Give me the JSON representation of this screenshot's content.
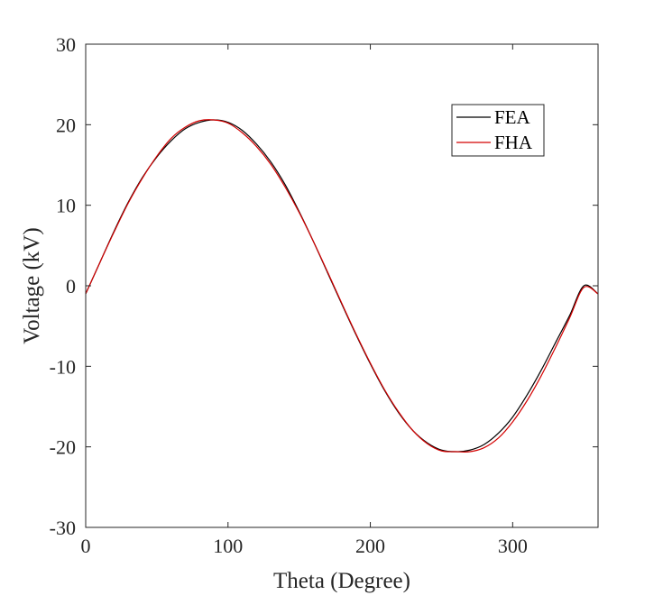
{
  "chart_data": {
    "type": "line",
    "title": "",
    "xlabel": "Theta (Degree)",
    "ylabel": "Voltage (kV)",
    "xlim": [
      0,
      360
    ],
    "ylim": [
      -30,
      30
    ],
    "xticks": [
      0,
      100,
      200,
      300
    ],
    "yticks": [
      -30,
      -20,
      -10,
      0,
      10,
      20,
      30
    ],
    "xtick_labels": [
      "0",
      "100",
      "200",
      "300"
    ],
    "ytick_labels": [
      "-30",
      "-20",
      "-10",
      "0",
      "10",
      "20",
      "30"
    ],
    "grid": false,
    "legend_position": "top-right",
    "series": [
      {
        "name": "FEA",
        "color": "#000000",
        "x": [
          0,
          10,
          20,
          30,
          40,
          50,
          60,
          70,
          80,
          90,
          100,
          110,
          120,
          130,
          140,
          150,
          160,
          170,
          180,
          190,
          200,
          210,
          220,
          230,
          240,
          250,
          260,
          270,
          280,
          290,
          300,
          310,
          320,
          330,
          340,
          350,
          360
        ],
        "values": [
          -1.0,
          2.9,
          6.8,
          10.4,
          13.5,
          16.0,
          18.0,
          19.5,
          20.3,
          20.6,
          20.3,
          19.3,
          17.6,
          15.4,
          12.6,
          9.2,
          5.5,
          1.6,
          -2.3,
          -6.1,
          -9.7,
          -13.0,
          -15.8,
          -18.0,
          -19.5,
          -20.4,
          -20.6,
          -20.4,
          -19.7,
          -18.3,
          -16.3,
          -13.6,
          -10.5,
          -7.1,
          -3.7,
          0.0,
          -1.0
        ]
      },
      {
        "name": "FHA",
        "color": "#d40000",
        "x": [
          0,
          10,
          20,
          30,
          40,
          50,
          60,
          70,
          80,
          90,
          100,
          110,
          120,
          130,
          140,
          150,
          160,
          170,
          180,
          190,
          200,
          210,
          220,
          230,
          240,
          250,
          260,
          270,
          280,
          290,
          300,
          310,
          320,
          330,
          340,
          350,
          360
        ],
        "values": [
          -1.0,
          2.9,
          6.7,
          10.3,
          13.4,
          16.1,
          18.3,
          19.7,
          20.5,
          20.6,
          20.2,
          19.0,
          17.3,
          15.1,
          12.3,
          9.1,
          5.5,
          1.7,
          -2.2,
          -6.0,
          -9.6,
          -12.9,
          -15.7,
          -18.0,
          -19.6,
          -20.5,
          -20.6,
          -20.6,
          -20.1,
          -18.9,
          -16.9,
          -14.3,
          -11.2,
          -7.7,
          -4.0,
          -0.2,
          -1.0
        ]
      }
    ]
  }
}
